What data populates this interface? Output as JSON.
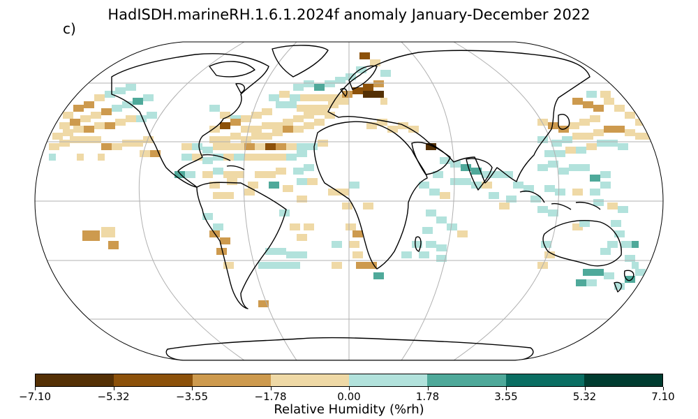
{
  "title": "HadISDH.marineRH.1.6.1.2024f anomaly January-December 2022",
  "panel_label": "c)",
  "colorbar": {
    "label": "Relative Humidity (%rh)",
    "ticks": [
      "−7.10",
      "−5.32",
      "−3.55",
      "−1.78",
      "0.00",
      "1.78",
      "3.55",
      "5.32",
      "7.10"
    ],
    "colors": [
      "#543005",
      "#8c510a",
      "#cd9a4e",
      "#efd9a6",
      "#b2e2dc",
      "#4fa99a",
      "#0a6e62",
      "#003c30"
    ]
  },
  "map": {
    "projection": "Robinson",
    "land_outline_color": "#000000",
    "graticule_color": "#b0b0b0",
    "gridded_anomaly_cells_note": "ocean grid boxes colored by RH anomaly class; land and missing boxes blank"
  }
}
